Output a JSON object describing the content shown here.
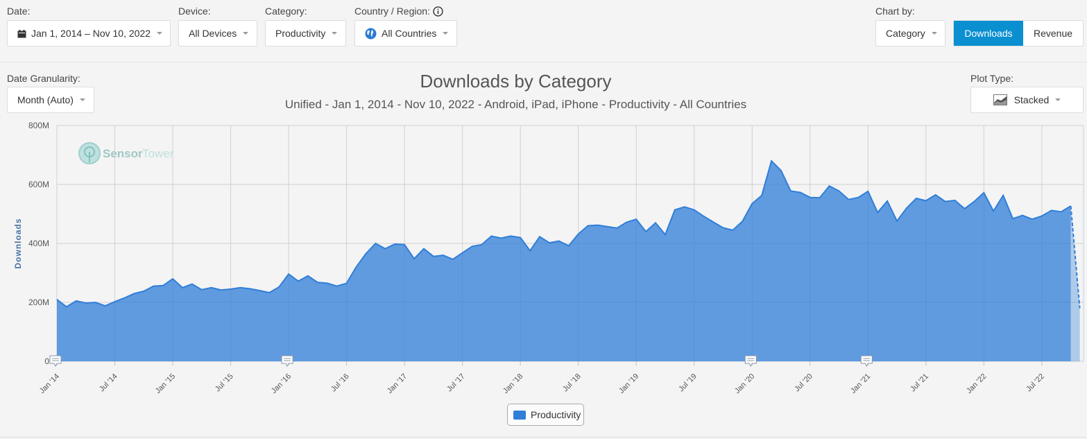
{
  "filters": {
    "date": {
      "label": "Date:",
      "value": "Jan 1, 2014 – Nov 10, 2022",
      "icon": "calendar-icon"
    },
    "device": {
      "label": "Device:",
      "value": "All Devices"
    },
    "category": {
      "label": "Category:",
      "value": "Productivity"
    },
    "country": {
      "label": "Country / Region:",
      "value": "All Countries",
      "info_icon": "info-icon",
      "icon": "globe-icon"
    }
  },
  "chart_by": {
    "label": "Chart by:",
    "value": "Category",
    "toggle": {
      "downloads": "Downloads",
      "revenue": "Revenue",
      "active": "Downloads"
    }
  },
  "granularity": {
    "label": "Date Granularity:",
    "value": "Month (Auto)"
  },
  "plot_type": {
    "label": "Plot Type:",
    "value": "Stacked",
    "icon": "stacked-area-icon"
  },
  "watermark": {
    "part1": "Sensor",
    "part2": "Tower"
  },
  "colors": {
    "series": "#2f7ed8",
    "accent": "#0a8fd1",
    "axis_label": "#4572a7"
  },
  "chart_data": {
    "type": "area",
    "title": "Downloads by Category",
    "subtitle": "Unified - Jan 1, 2014 - Nov 10, 2022 - Android, iPad, iPhone - Productivity - All Countries",
    "xlabel": "",
    "ylabel": "Downloads",
    "ylim": [
      0,
      800
    ],
    "yunit": "M",
    "yticks": [
      "0",
      "200M",
      "400M",
      "600M",
      "800M"
    ],
    "x_tick_labels": [
      "Jan '14",
      "Jul '14",
      "Jan '15",
      "Jul '15",
      "Jan '16",
      "Jul '16",
      "Jan '17",
      "Jul '17",
      "Jan '18",
      "Jul '18",
      "Jan '19",
      "Jul '19",
      "Jan '20",
      "Jul '20",
      "Jan '21",
      "Jul '21",
      "Jan '22",
      "Jul '22"
    ],
    "grid": true,
    "stacked": true,
    "legend": "bottom-center",
    "x_start": "2014-01",
    "x_step": "month",
    "annotation_months": [
      "2014-01",
      "2016-01",
      "2020-01",
      "2021-01"
    ],
    "series": [
      {
        "name": "Productivity",
        "color": "#2f7ed8",
        "values": [
          210,
          185,
          205,
          198,
          200,
          188,
          202,
          215,
          230,
          238,
          255,
          257,
          280,
          250,
          262,
          243,
          250,
          242,
          245,
          250,
          246,
          240,
          233,
          252,
          296,
          272,
          290,
          268,
          265,
          255,
          265,
          320,
          365,
          400,
          382,
          398,
          396,
          348,
          382,
          356,
          360,
          346,
          368,
          390,
          396,
          425,
          418,
          425,
          420,
          375,
          423,
          402,
          408,
          392,
          432,
          460,
          462,
          457,
          452,
          472,
          482,
          440,
          470,
          430,
          514,
          524,
          514,
          492,
          472,
          453,
          445,
          475,
          535,
          563,
          680,
          647,
          578,
          573,
          556,
          555,
          595,
          578,
          549,
          556,
          577,
          505,
          544,
          476,
          520,
          553,
          545,
          565,
          542,
          546,
          518,
          542,
          572,
          510,
          563,
          484,
          495,
          482,
          493,
          512,
          507,
          527
        ],
        "projected_end": 180
      }
    ]
  }
}
